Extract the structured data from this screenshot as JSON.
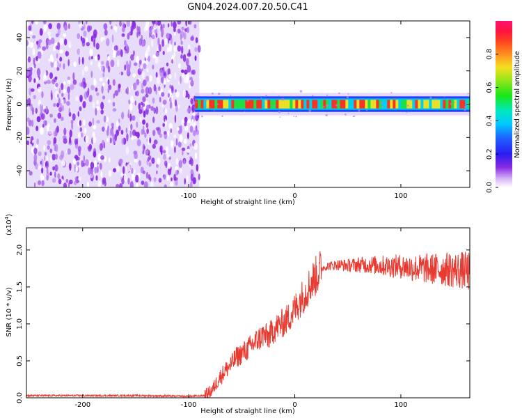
{
  "title": "GN04.2024.007.20.50.C41",
  "colors": {
    "snr_line": "#e83a30",
    "noise_dots": "#8a2be2",
    "noise_bg": "#e8dcfb"
  },
  "chart_data": [
    {
      "type": "heatmap",
      "name": "spectrogram",
      "xlabel": "Height of straight line (km)",
      "ylabel": "Frequency (Hz)",
      "xlim": [
        -253,
        165
      ],
      "ylim": [
        -50,
        50
      ],
      "xticks": [
        -200,
        -100,
        0,
        100
      ],
      "yticks": [
        -40,
        -20,
        0,
        20,
        40
      ],
      "noise_region_x": [
        -253,
        -90
      ],
      "signal_band_y": [
        -3,
        3
      ],
      "grid": false,
      "colorbar": {
        "label": "Normalized spectral amplitude",
        "range": [
          0,
          1
        ],
        "ticks": [
          "0.0",
          "0.2",
          "0.4",
          "0.6",
          "0.8"
        ],
        "tick_values": [
          0.0,
          0.2,
          0.4,
          0.6,
          0.8
        ],
        "colormap": "rainbow"
      }
    },
    {
      "type": "line",
      "name": "snr",
      "xlabel": "Height of straight line (km)",
      "ylabel": "SNR (10 * v/v)",
      "scale_label": "(x10",
      "scale_exp": "4",
      "scale_close": ")",
      "xlim": [
        -253,
        165
      ],
      "ylim": [
        0,
        2.3
      ],
      "xticks": [
        -200,
        -100,
        0,
        100
      ],
      "yticks": [
        "0.0",
        "0.5",
        "1.0",
        "1.5",
        "2.0"
      ],
      "ytick_values": [
        0,
        0.5,
        1.0,
        1.5,
        2.0
      ],
      "grid": false,
      "points": [
        [
          -253,
          0.03
        ],
        [
          -200,
          0.03
        ],
        [
          -150,
          0.03
        ],
        [
          -100,
          0.02
        ],
        [
          -85,
          0.03
        ],
        [
          -78,
          0.1
        ],
        [
          -72,
          0.25
        ],
        [
          -65,
          0.38
        ],
        [
          -60,
          0.45
        ],
        [
          -55,
          0.55
        ],
        [
          -50,
          0.6
        ],
        [
          -45,
          0.65
        ],
        [
          -40,
          0.72
        ],
        [
          -35,
          0.78
        ],
        [
          -30,
          0.85
        ],
        [
          -25,
          0.82
        ],
        [
          -20,
          0.92
        ],
        [
          -15,
          0.98
        ],
        [
          -10,
          1.02
        ],
        [
          -5,
          1.1
        ],
        [
          0,
          1.2
        ],
        [
          5,
          1.32
        ],
        [
          10,
          1.42
        ],
        [
          15,
          1.55
        ],
        [
          20,
          1.65
        ],
        [
          25,
          1.75
        ],
        [
          30,
          1.78
        ],
        [
          40,
          1.8
        ],
        [
          50,
          1.79
        ],
        [
          60,
          1.8
        ],
        [
          70,
          1.8
        ],
        [
          80,
          1.79
        ],
        [
          90,
          1.78
        ],
        [
          100,
          1.78
        ],
        [
          110,
          1.76
        ],
        [
          120,
          1.75
        ],
        [
          130,
          1.74
        ],
        [
          140,
          1.74
        ],
        [
          150,
          1.73
        ],
        [
          160,
          1.72
        ],
        [
          165,
          1.7
        ]
      ]
    }
  ]
}
